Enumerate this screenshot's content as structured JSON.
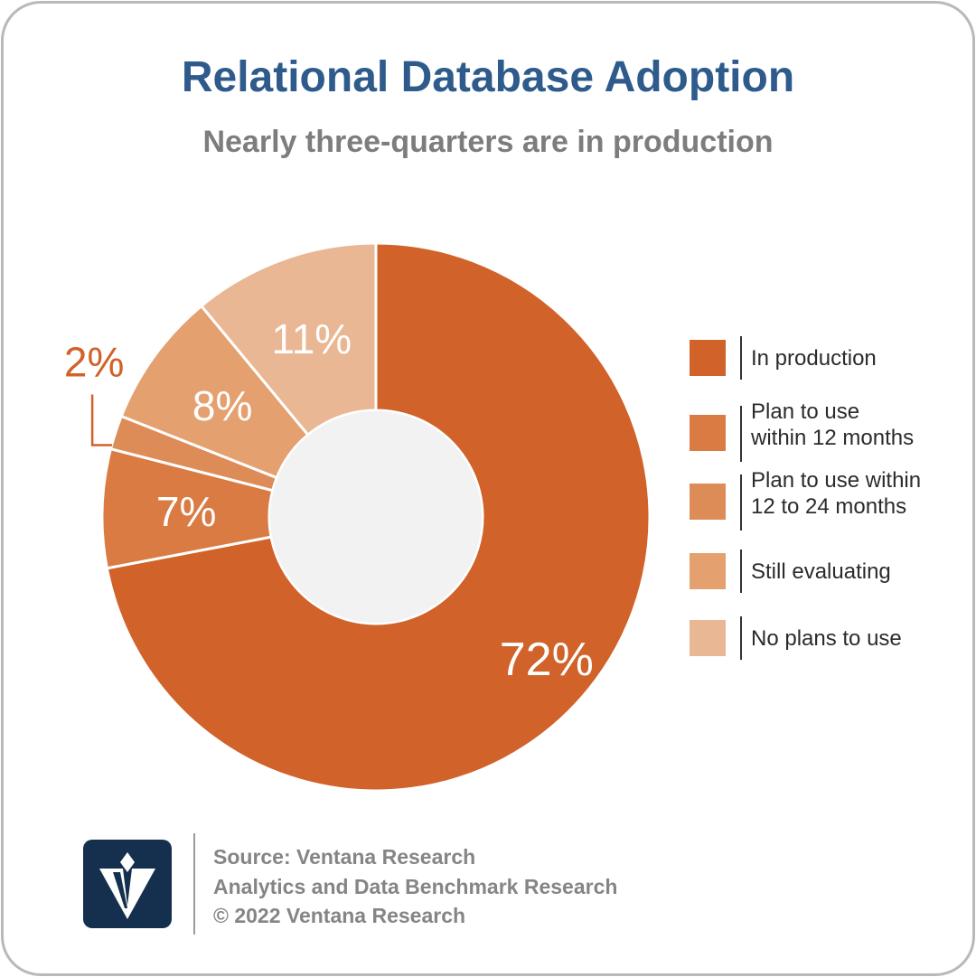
{
  "title": "Relational Database Adoption",
  "subtitle": "Nearly three-quarters are in production",
  "chart_data": {
    "type": "pie",
    "style": "donut",
    "categories": [
      "In production",
      "Plan to use within 12 months",
      "Plan to use within 12 to 24 months",
      "Still evaluating",
      "No plans to use"
    ],
    "values": [
      72,
      7,
      2,
      8,
      11
    ],
    "value_labels": [
      "72%",
      "7%",
      "2%",
      "8%",
      "11%"
    ],
    "colors": [
      "#d0622a",
      "#d97b43",
      "#dd8c58",
      "#e4a06f",
      "#eab795"
    ],
    "legend_position": "right"
  },
  "legend": [
    {
      "lines": [
        "In production"
      ],
      "color": "#d0622a"
    },
    {
      "lines": [
        "Plan to use",
        "within 12 months"
      ],
      "color": "#d97b43"
    },
    {
      "lines": [
        "Plan to use within",
        "12 to 24 months"
      ],
      "color": "#dd8c58"
    },
    {
      "lines": [
        "Still evaluating"
      ],
      "color": "#e4a06f"
    },
    {
      "lines": [
        "No plans to use"
      ],
      "color": "#eab795"
    }
  ],
  "footer": {
    "source": "Source: Ventana Research",
    "study": "Analytics and Data Benchmark Research",
    "copyright": "© 2022 Ventana Research"
  },
  "colors": {
    "title": "#2e5b8c",
    "subtitle": "#7d7d7d",
    "donut_hole": "#f2f2f2",
    "logo_background": "#15304f"
  }
}
